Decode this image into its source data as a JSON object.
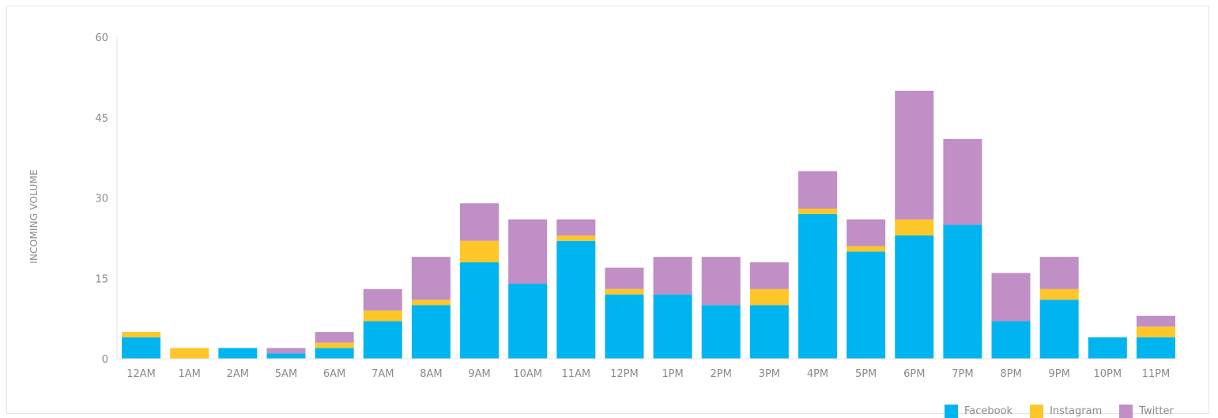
{
  "chart_data": {
    "type": "bar",
    "stacked": true,
    "categories": [
      "12AM",
      "1AM",
      "2AM",
      "5AM",
      "6AM",
      "7AM",
      "8AM",
      "9AM",
      "10AM",
      "11AM",
      "12PM",
      "1PM",
      "2PM",
      "3PM",
      "4PM",
      "5PM",
      "6PM",
      "7PM",
      "8PM",
      "9PM",
      "10PM",
      "11PM"
    ],
    "series": [
      {
        "name": "Facebook",
        "color": "#00b5ef",
        "values": [
          4,
          0,
          2,
          1,
          2,
          7,
          10,
          18,
          14,
          22,
          12,
          12,
          10,
          10,
          27,
          20,
          23,
          25,
          7,
          11,
          4,
          4
        ]
      },
      {
        "name": "Instagram",
        "color": "#ffc629",
        "values": [
          1,
          2,
          0,
          0,
          1,
          2,
          1,
          4,
          0,
          1,
          1,
          0,
          0,
          3,
          1,
          1,
          3,
          0,
          0,
          2,
          0,
          2
        ]
      },
      {
        "name": "Twitter",
        "color": "#bf8fc6",
        "values": [
          0,
          0,
          0,
          1,
          2,
          4,
          8,
          7,
          12,
          3,
          4,
          7,
          9,
          5,
          7,
          5,
          24,
          16,
          9,
          6,
          0,
          2
        ]
      }
    ],
    "ylabel": "INCOMING VOLUME",
    "xlabel": "",
    "ylim": [
      0,
      60
    ],
    "yticks": [
      "0",
      "15",
      "30",
      "45",
      "60"
    ],
    "grid": false,
    "legend_position": "bottom-right"
  }
}
